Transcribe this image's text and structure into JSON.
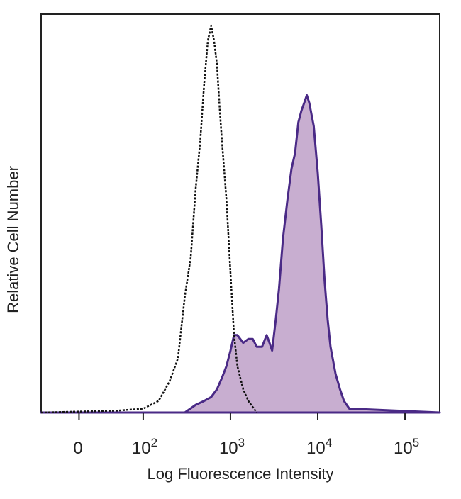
{
  "chart_data": {
    "type": "area",
    "xlabel": "Log Fluorescence Intensity",
    "ylabel": "Relative Cell Number",
    "x_scale": "biexponential",
    "xlim": [
      -50,
      250000
    ],
    "ylim": [
      0,
      100
    ],
    "y_tick_labels_shown": false,
    "grid": false,
    "x_ticks": [
      {
        "value": 0,
        "base": "0",
        "exp": ""
      },
      {
        "value": 100,
        "base": "10",
        "exp": "2"
      },
      {
        "value": 1000,
        "base": "10",
        "exp": "3"
      },
      {
        "value": 10000,
        "base": "10",
        "exp": "4"
      },
      {
        "value": 100000,
        "base": "10",
        "exp": "5"
      }
    ],
    "series": [
      {
        "style": "dotted",
        "fill": "none",
        "color": "#111111",
        "x": [
          -50,
          50,
          100,
          150,
          200,
          250,
          300,
          350,
          400,
          450,
          500,
          550,
          600,
          650,
          700,
          750,
          800,
          900,
          1000,
          1100,
          1200,
          1400,
          1600,
          2000
        ],
        "y": [
          0,
          0.5,
          1,
          3,
          8,
          14,
          30,
          40,
          58,
          70,
          85,
          96,
          100,
          96,
          90,
          79,
          70,
          55,
          36,
          20,
          12,
          6,
          3,
          0
        ]
      },
      {
        "style": "solid",
        "fill": "#c8aed0",
        "color": "#4a2a86",
        "x": [
          -50,
          300,
          400,
          500,
          600,
          700,
          800,
          900,
          1000,
          1100,
          1200,
          1400,
          1600,
          1800,
          2000,
          2300,
          2600,
          2800,
          3000,
          3300,
          3600,
          4000,
          4500,
          5000,
          5500,
          6000,
          6500,
          7000,
          7500,
          8000,
          9000,
          10000,
          11000,
          12000,
          13000,
          14000,
          16000,
          18000,
          20000,
          23000,
          250000
        ],
        "y": [
          0,
          0,
          2,
          3,
          4,
          6,
          9,
          12,
          16,
          20,
          20,
          18,
          19,
          19,
          17,
          17,
          20,
          18,
          16,
          24,
          32,
          45,
          55,
          63,
          67,
          75,
          78,
          80,
          82,
          80,
          74,
          62,
          48,
          34,
          24,
          17,
          10,
          6,
          3,
          1,
          0
        ]
      }
    ]
  }
}
